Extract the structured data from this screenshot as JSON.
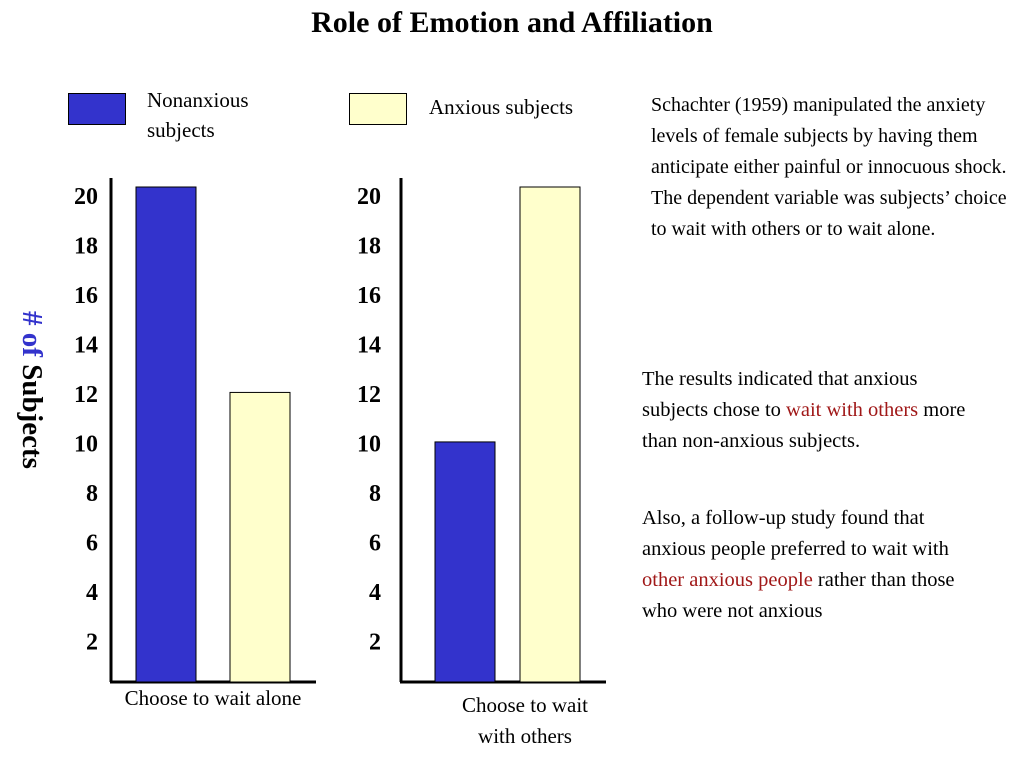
{
  "title": "Role of Emotion and Affiliation",
  "colors": {
    "nonanxious": "#3333cc",
    "anxious": "#ffffcc",
    "highlight": "#a01818"
  },
  "legend": [
    {
      "label_line1": "Nonanxious",
      "label_line2": "subjects",
      "color": "#3333cc"
    },
    {
      "label_line1": "Anxious subjects",
      "label_line2": "",
      "color": "#ffffcc"
    }
  ],
  "ylabel": {
    "hash_part": "# of",
    "rest": " Subjects"
  },
  "chart_data": [
    {
      "type": "bar",
      "category_line1": "Choose to wait alone",
      "category_line2": "",
      "series": [
        {
          "name": "Nonanxious subjects",
          "value": 20,
          "color": "#3333cc"
        },
        {
          "name": "Anxious subjects",
          "value": 11.7,
          "color": "#ffffcc"
        }
      ],
      "yticks": [
        2,
        4,
        6,
        8,
        10,
        12,
        14,
        16,
        18,
        20
      ]
    },
    {
      "type": "bar",
      "category_line1": "Choose to wait",
      "category_line2": "with others",
      "series": [
        {
          "name": "Nonanxious subjects",
          "value": 9.7,
          "color": "#3333cc"
        },
        {
          "name": "Anxious subjects",
          "value": 20,
          "color": "#ffffcc"
        }
      ],
      "yticks": [
        2,
        4,
        6,
        8,
        10,
        12,
        14,
        16,
        18,
        20
      ]
    }
  ],
  "text": {
    "p1": "Schachter (1959) manipulated the anxiety levels of  female subjects by having them  anticipate either painful or innocuous shock.  The dependent variable was subjects’ choice to wait with others or to wait alone.",
    "p2_a": "The results indicated that anxious subjects chose to ",
    "p2_red": "wait with others",
    "p2_b": " more than non-anxious subjects.",
    "p3_a": "Also, a follow-up study found that anxious people preferred to wait with ",
    "p3_red": "other anxious people",
    "p3_b": " rather than those who were not anxious"
  }
}
